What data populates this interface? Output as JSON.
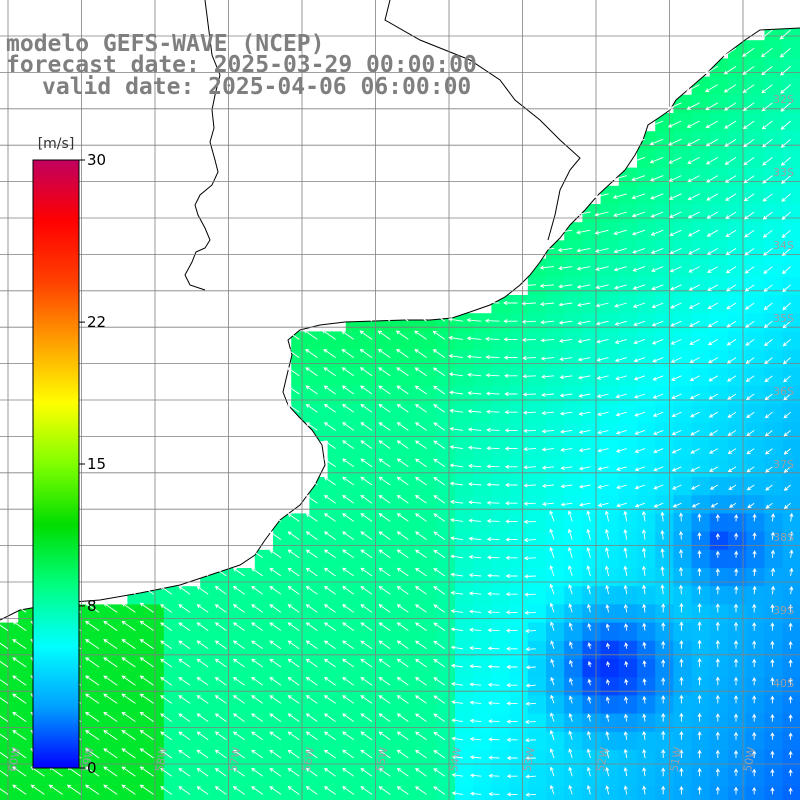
{
  "title": {
    "line1": "modelo GEFS-WAVE (NCEP)",
    "line2": "forecast date: 2025-03-29 00:00:00",
    "line3": "valid date: 2025-04-06 06:00:00"
  },
  "colorbar": {
    "unit": "[m/s]",
    "min": 0,
    "max": 30,
    "ticks": [
      {
        "value": 30,
        "label": "30"
      },
      {
        "value": 22,
        "label": "22"
      },
      {
        "value": 15,
        "label": "15"
      },
      {
        "value": 8,
        "label": "8"
      },
      {
        "value": 0,
        "label": "0"
      }
    ],
    "colors": [
      "#0000ff",
      "#00a0ff",
      "#00ffff",
      "#00ff80",
      "#00dd00",
      "#80ff00",
      "#ffff00",
      "#ffa000",
      "#ff4000",
      "#ff0000",
      "#c00060"
    ]
  },
  "map": {
    "land_color": "#ffffff",
    "grid_color": "#808080",
    "lat_labels": [
      "32S",
      "33S",
      "34S",
      "35S",
      "36S",
      "37S",
      "38S",
      "39S",
      "40S"
    ],
    "lon_labels": [
      "60W",
      "59W",
      "58W",
      "57W",
      "56W",
      "55W",
      "54W",
      "53W",
      "52W",
      "51W",
      "50W"
    ]
  }
}
